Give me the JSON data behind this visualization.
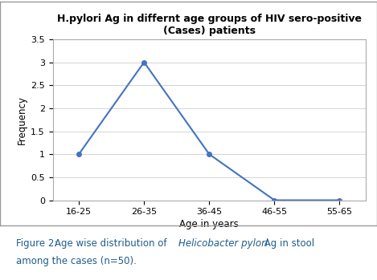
{
  "title_line1": "H.pylori Ag in differnt age groups of HIV sero-positive",
  "title_line2": "(Cases) patients",
  "x_labels": [
    "16-25",
    "26-35",
    "36-45",
    "46-55",
    "55-65"
  ],
  "y_values": [
    1,
    3,
    1,
    0,
    0
  ],
  "xlabel": "Age in years",
  "ylabel": "Frequency",
  "ylim": [
    0,
    3.5
  ],
  "yticks": [
    0,
    0.5,
    1,
    1.5,
    2,
    2.5,
    3,
    3.5
  ],
  "line_color": "#4472C4",
  "marker": "o",
  "marker_size": 4,
  "line_width": 1.5,
  "title_fontsize": 9,
  "axis_label_fontsize": 8.5,
  "tick_fontsize": 8,
  "caption_color": "#1F5C8B",
  "background_color": "#ffffff",
  "plot_bg_color": "#ffffff",
  "grid_color": "#cccccc",
  "outer_box_color": "#999999",
  "caption_fontsize": 8.5
}
